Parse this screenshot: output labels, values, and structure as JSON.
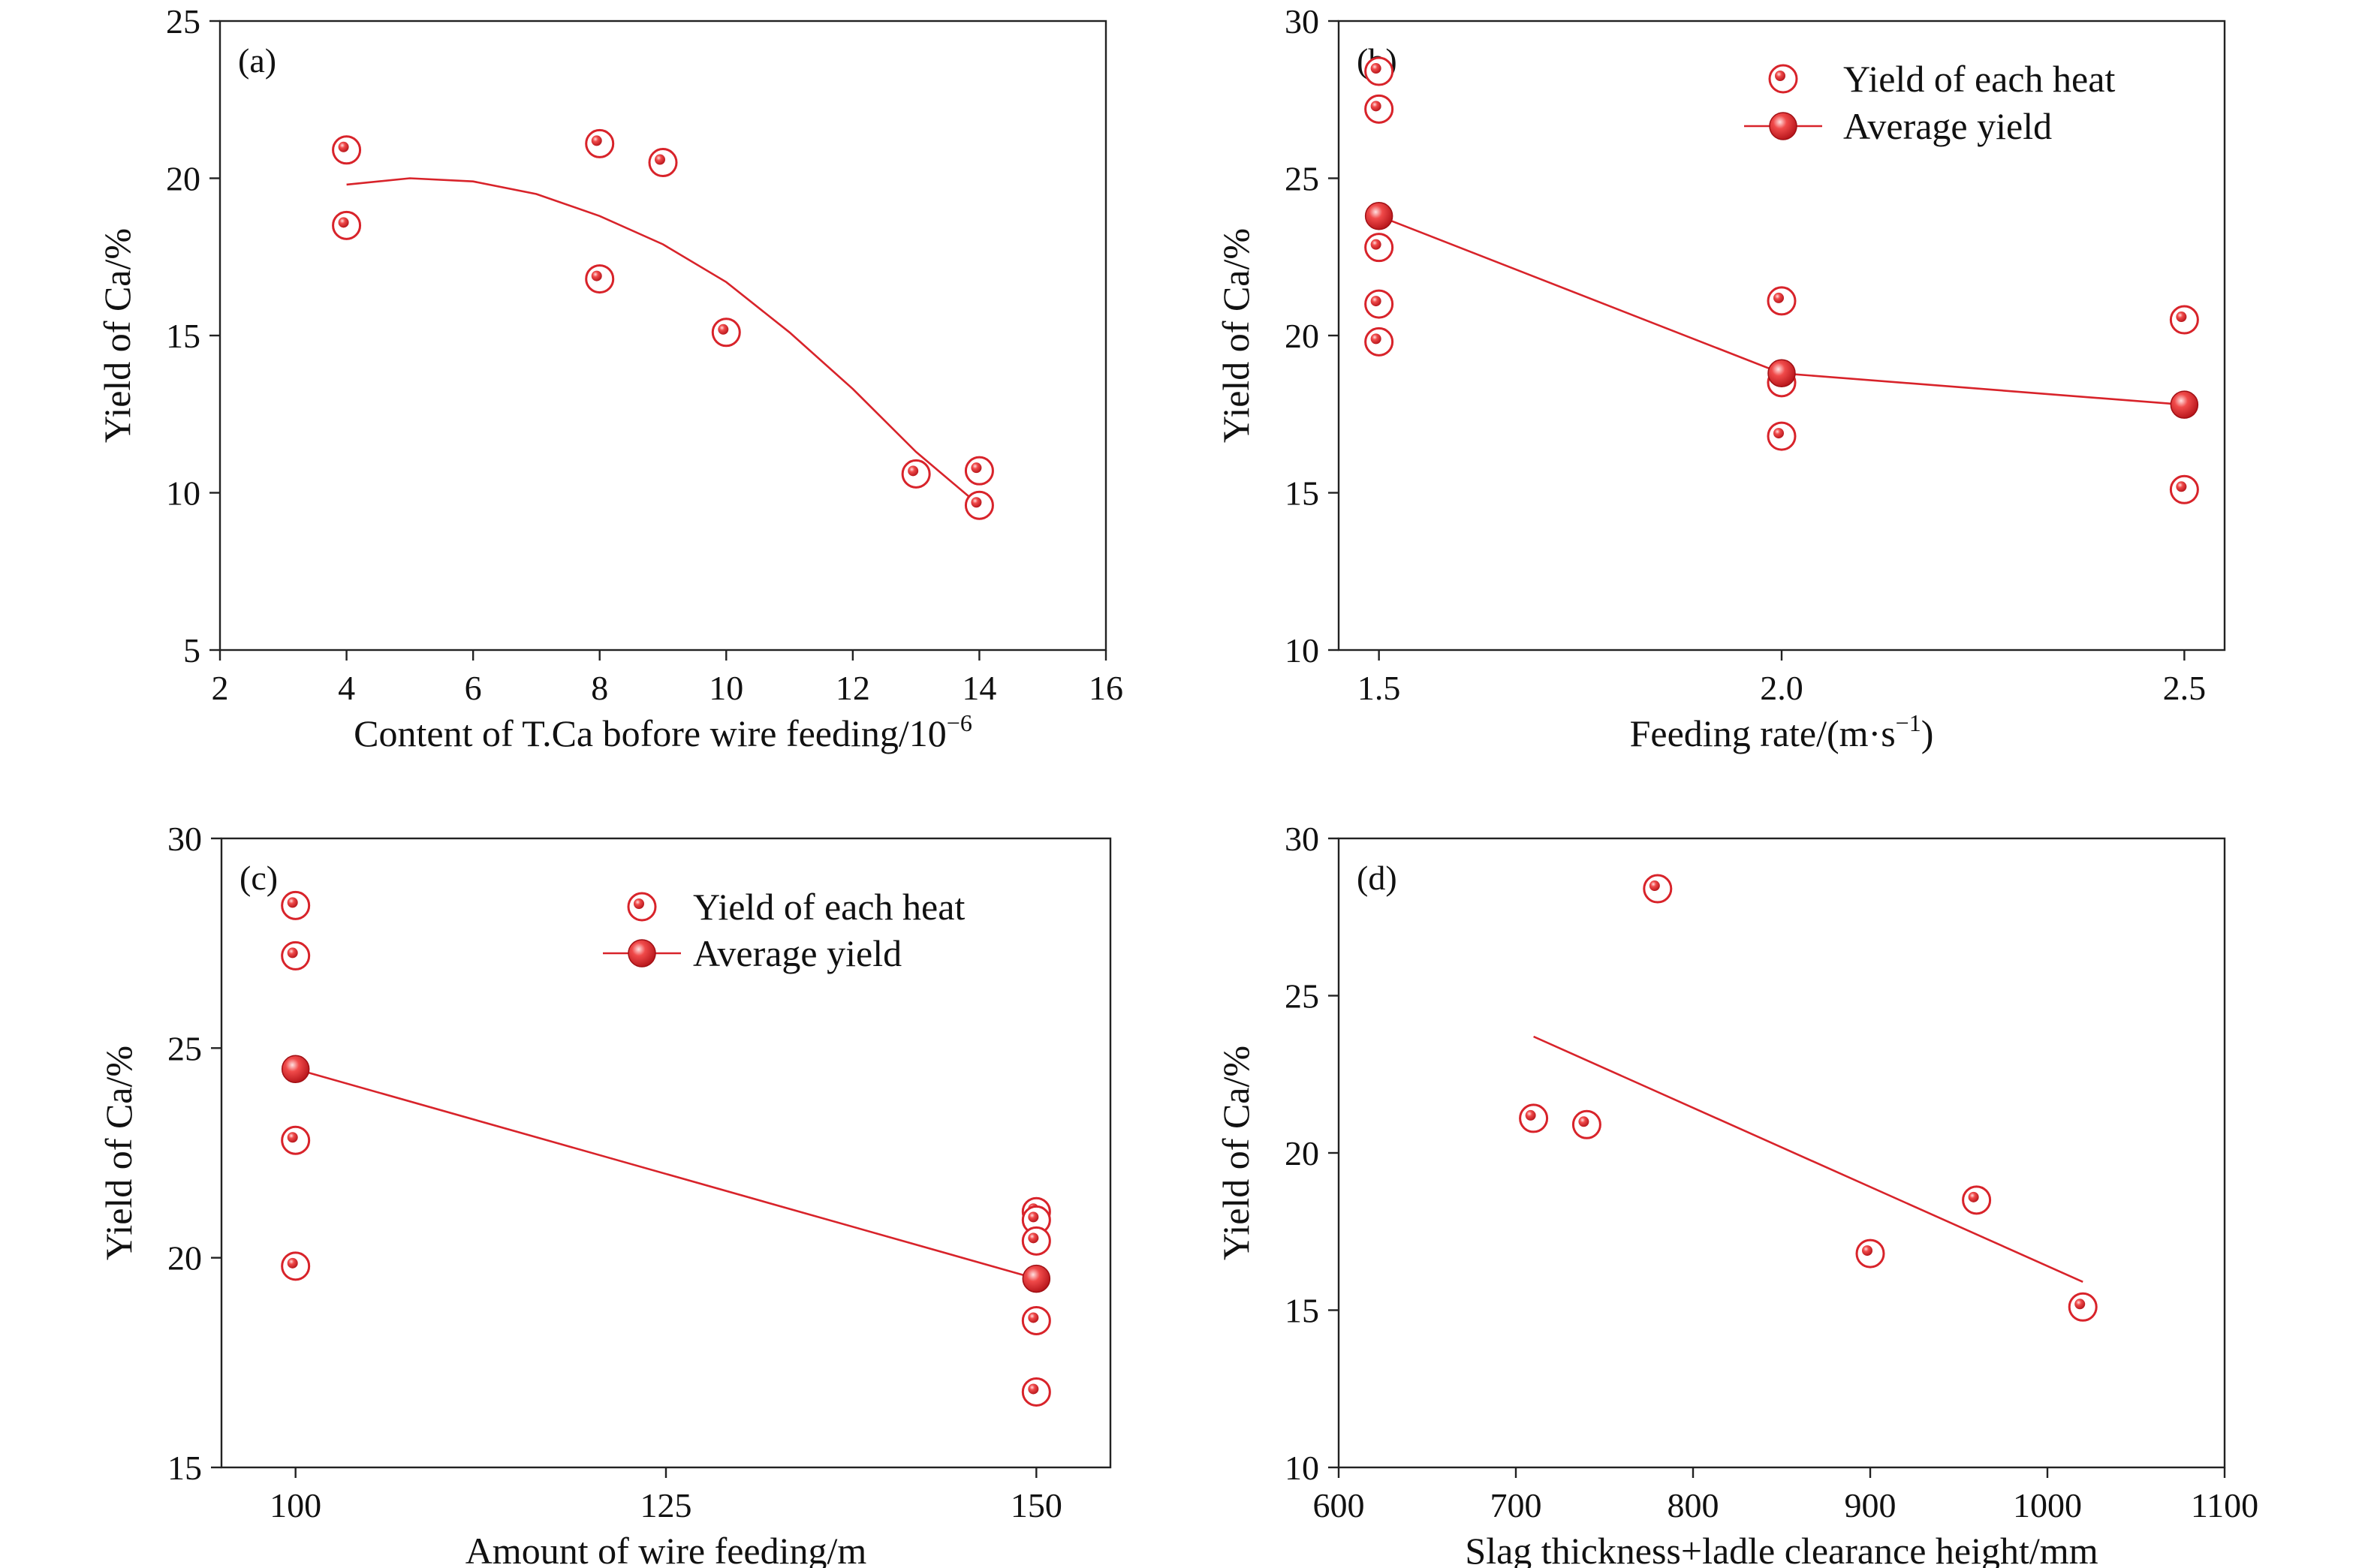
{
  "colors": {
    "series": "#d8232a",
    "axis": "#222222",
    "background": "#ffffff"
  },
  "chart_data": [
    {
      "type": "scatter",
      "panel_label": "(a)",
      "xlabel": "Content of T.Ca bofore wire feeding/10",
      "xlabel_sup": "−6",
      "ylabel": "Yield of Ca/%",
      "xlim": [
        2,
        16
      ],
      "ylim": [
        5,
        25
      ],
      "xticks": [
        "2",
        "4",
        "6",
        "8",
        "10",
        "12",
        "14",
        "16"
      ],
      "yticks": [
        "5",
        "10",
        "15",
        "20",
        "25"
      ],
      "points": [
        [
          4,
          20.9
        ],
        [
          4,
          18.5
        ],
        [
          8,
          21.1
        ],
        [
          8,
          16.8
        ],
        [
          9,
          20.5
        ],
        [
          10,
          15.1
        ],
        [
          13,
          10.6
        ],
        [
          14,
          10.7
        ],
        [
          14,
          9.6
        ]
      ],
      "fit": {
        "kind": "polynomial",
        "x": [
          4,
          5,
          6,
          7,
          8,
          9,
          10,
          11,
          12,
          13,
          14
        ],
        "y": [
          19.8,
          20.0,
          19.9,
          19.5,
          18.8,
          17.9,
          16.7,
          15.1,
          13.3,
          11.3,
          9.6
        ]
      }
    },
    {
      "type": "scatter",
      "panel_label": "(b)",
      "xlabel": "Feeding rate/(m·s",
      "xlabel_sup": "−1",
      "xlabel_tail": ")",
      "ylabel": "Yield of Ca/%",
      "xlim": [
        1.45,
        2.55
      ],
      "ylim": [
        10,
        30
      ],
      "xticks": [
        "1.5",
        "2.0",
        "2.5"
      ],
      "yticks": [
        "10",
        "15",
        "20",
        "25",
        "30"
      ],
      "points": [
        [
          1.5,
          28.4
        ],
        [
          1.5,
          27.2
        ],
        [
          1.5,
          22.8
        ],
        [
          1.5,
          21.0
        ],
        [
          1.5,
          19.8
        ],
        [
          2.0,
          21.1
        ],
        [
          2.0,
          18.5
        ],
        [
          2.0,
          16.8
        ],
        [
          2.5,
          20.5
        ],
        [
          2.5,
          15.1
        ]
      ],
      "average": {
        "x": [
          1.5,
          2.0,
          2.5
        ],
        "y": [
          23.8,
          18.8,
          17.8
        ]
      },
      "legend": [
        "Yield  of each heat",
        "Average yield"
      ]
    },
    {
      "type": "scatter",
      "panel_label": "(c)",
      "xlabel": "Amount of wire feeding/m",
      "ylabel": "Yield of Ca/%",
      "xlim": [
        95,
        155
      ],
      "ylim": [
        15,
        30
      ],
      "xticks": [
        "100",
        "125",
        "150"
      ],
      "yticks": [
        "15",
        "20",
        "25",
        "30"
      ],
      "points": [
        [
          100,
          28.4
        ],
        [
          100,
          27.2
        ],
        [
          100,
          22.8
        ],
        [
          100,
          19.8
        ],
        [
          150,
          21.1
        ],
        [
          150,
          20.9
        ],
        [
          150,
          20.4
        ],
        [
          150,
          18.5
        ],
        [
          150,
          16.8
        ]
      ],
      "average": {
        "x": [
          100,
          150
        ],
        "y": [
          24.5,
          19.5
        ]
      },
      "legend": [
        "Yield of each heat",
        "Average yield"
      ]
    },
    {
      "type": "scatter",
      "panel_label": "(d)",
      "xlabel": "Slag thickness+ladle clearance height/mm",
      "ylabel": "Yield of Ca/%",
      "xlim": [
        600,
        1100
      ],
      "ylim": [
        10,
        30
      ],
      "xticks": [
        "600",
        "700",
        "800",
        "900",
        "1000",
        "1100"
      ],
      "yticks": [
        "10",
        "15",
        "20",
        "25",
        "30"
      ],
      "points": [
        [
          710,
          21.1
        ],
        [
          740,
          20.9
        ],
        [
          780,
          28.4
        ],
        [
          900,
          16.8
        ],
        [
          960,
          18.5
        ],
        [
          1020,
          15.1
        ]
      ],
      "fit": {
        "kind": "linear",
        "x": [
          710,
          1020
        ],
        "y": [
          23.7,
          15.9
        ]
      }
    }
  ]
}
